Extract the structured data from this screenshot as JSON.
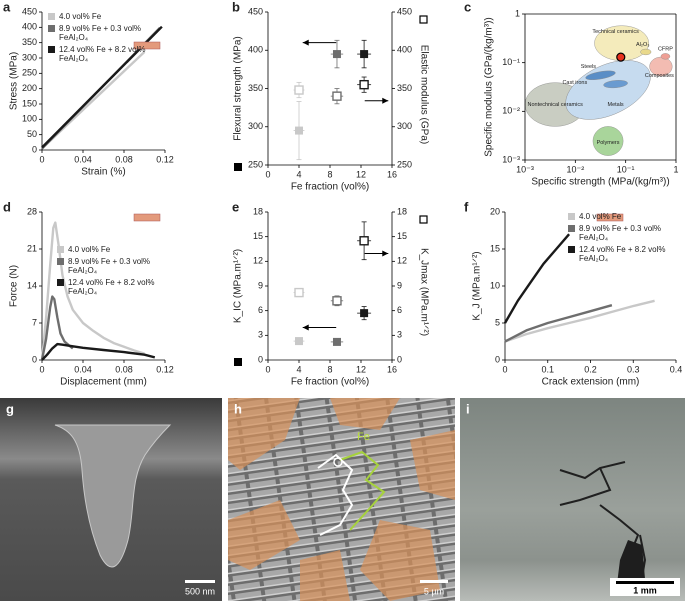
{
  "chart_data": [
    {
      "panel": "a",
      "type": "line",
      "xlabel": "Strain (%)",
      "ylabel": "Stress (MPa)",
      "xlim": [
        0,
        0.12
      ],
      "xticks": [
        0,
        0.04,
        0.08,
        0.12
      ],
      "ylim": [
        0,
        450
      ],
      "yticks": [
        0,
        50,
        100,
        150,
        200,
        250,
        300,
        350,
        400,
        450
      ],
      "legend": "upper left",
      "series": [
        {
          "name": "4.0 vol% Fe",
          "color": "#c8c8c8",
          "x": [
            0,
            0.1
          ],
          "values": [
            5,
            320
          ]
        },
        {
          "name": "8.9 vol% Fe + 0.3 vol% FeAl₂O₄",
          "color": "#6e6e6e",
          "x": [
            0,
            0.115
          ],
          "values": [
            5,
            398
          ]
        },
        {
          "name": "12.4 vol% Fe + 8.2 vol% FeAl₂O₄",
          "color": "#1a1a1a",
          "x": [
            0,
            0.117
          ],
          "values": [
            8,
            402
          ]
        }
      ]
    },
    {
      "panel": "b",
      "type": "scatter",
      "xlabel": "Fe fraction (vol%)",
      "ylabel": "Flexural strength (MPa)",
      "y2label": "Elastic modulus (GPa)",
      "x": [
        4,
        8.9,
        12.4
      ],
      "xerrors": [
        0.7,
        0.8,
        0.9
      ],
      "xlim": [
        0,
        16
      ],
      "xticks": [
        0,
        4,
        8,
        12,
        16
      ],
      "ylim": [
        250,
        450
      ],
      "yticks": [
        250,
        300,
        350,
        400,
        450
      ],
      "y2lim": [
        250,
        450
      ],
      "y2ticks": [
        250,
        300,
        350,
        400,
        450
      ],
      "series": [
        {
          "marker": "filled",
          "colors": [
            "#c8c8c8",
            "#6e6e6e",
            "#1a1a1a"
          ],
          "values": [
            295,
            395,
            395
          ],
          "errors": [
            38,
            18,
            18
          ]
        },
        {
          "axis": "y2",
          "marker": "open",
          "colors": [
            "#c8c8c8",
            "#6e6e6e",
            "#1a1a1a"
          ],
          "values": [
            348,
            340,
            355
          ],
          "errors": [
            10,
            10,
            10
          ]
        }
      ]
    },
    {
      "panel": "c",
      "type": "ashby",
      "xlabel": "Specific strength (MPa/(kg/m³))",
      "ylabel": "Specific modulus (GPa/(kg/m³))",
      "xlog": true,
      "ylog": true,
      "xlim": [
        0.001,
        1
      ],
      "ylim": [
        0.001,
        1
      ],
      "xticks": [
        {
          "value": 0.001,
          "label": "10⁻³"
        },
        {
          "value": 0.01,
          "label": "10⁻²"
        },
        {
          "value": 0.1,
          "label": "10⁻¹"
        },
        1
      ],
      "yticks": [
        {
          "value": 0.001,
          "label": "10⁻³"
        },
        {
          "value": 0.01,
          "label": "10⁻²"
        },
        {
          "value": 0.1,
          "label": "10⁻¹"
        },
        1
      ],
      "regions": [
        {
          "label": "Nontechnical ceramics",
          "color": "#c9cdc2"
        },
        {
          "label": "Metals",
          "color": "#c6dbef"
        },
        {
          "label": "Steels",
          "color": "#5a8ec6"
        },
        {
          "label": "Cast irons",
          "color": "#6a9bd0"
        },
        {
          "label": "Polymers",
          "color": "#a9d59b"
        },
        {
          "label": "Technical ceramics",
          "color": "#f4ebbb"
        },
        {
          "label": "Al₂O₃",
          "color": "#e9d98c"
        },
        {
          "label": "Composites",
          "color": "#f3bcb2"
        },
        {
          "label": "CFRP",
          "color": "#ee9f95"
        }
      ],
      "points": [
        {
          "x": 0.08,
          "y": 0.13,
          "color": "#e8321e"
        }
      ]
    },
    {
      "panel": "d",
      "type": "line",
      "xlabel": "Displacement (mm)",
      "ylabel": "Force (N)",
      "xlim": [
        0,
        0.12
      ],
      "xticks": [
        0,
        0.04,
        0.08,
        0.12
      ],
      "ylim": [
        0,
        28
      ],
      "yticks": [
        0,
        7,
        14,
        21,
        28
      ],
      "legend": "center right",
      "series": [
        {
          "name": "4.0 vol% Fe",
          "color": "#c8c8c8",
          "x": [
            0,
            0.004,
            0.008,
            0.011,
            0.013,
            0.016,
            0.02,
            0.025,
            0.03,
            0.04,
            0.05,
            0.06,
            0.07,
            0.08,
            0.09,
            0.1
          ],
          "values": [
            0,
            8,
            18,
            25,
            26,
            22,
            16,
            12,
            9.5,
            7,
            5.5,
            4.2,
            3.2,
            2.5,
            1.8,
            1.2
          ]
        },
        {
          "name": "8.9 vol% Fe + 0.3 vol% FeAl₂O₄",
          "color": "#6e6e6e",
          "x": [
            0,
            0.004,
            0.008,
            0.01,
            0.012,
            0.015,
            0.018,
            0.022,
            0.026,
            0.03
          ],
          "values": [
            0,
            4,
            10,
            12,
            11.5,
            8,
            5,
            3.5,
            2.8,
            2.2
          ]
        },
        {
          "name": "12.4 vol% Fe + 8.2 vol% FeAl₂O₄",
          "color": "#1a1a1a",
          "x": [
            0,
            0.005,
            0.01,
            0.015,
            0.02,
            0.03,
            0.04,
            0.06,
            0.08,
            0.1,
            0.11
          ],
          "values": [
            0,
            1,
            2.2,
            3,
            2.9,
            2.6,
            2.3,
            1.9,
            1.5,
            1,
            0.5
          ]
        }
      ]
    },
    {
      "panel": "e",
      "type": "scatter",
      "xlabel": "Fe fraction (vol%)",
      "ylabel": "K_IC (MPa.m¹ᐟ²)",
      "y2label": "K_Jmax (MPa.m¹ᐟ²)",
      "x": [
        4,
        8.9,
        12.4
      ],
      "xerrors": [
        0.7,
        0.8,
        0.9
      ],
      "xlim": [
        0,
        16
      ],
      "xticks": [
        0,
        4,
        8,
        12,
        16
      ],
      "ylim": [
        0,
        18
      ],
      "yticks": [
        0,
        3,
        6,
        9,
        12,
        15,
        18
      ],
      "y2lim": [
        0,
        18
      ],
      "y2ticks": [
        0,
        3,
        6,
        9,
        12,
        15,
        18
      ],
      "series": [
        {
          "marker": "filled",
          "colors": [
            "#c8c8c8",
            "#6e6e6e",
            "#1a1a1a"
          ],
          "values": [
            2.3,
            2.2,
            5.7
          ],
          "errors": [
            0.3,
            0.3,
            0.8
          ]
        },
        {
          "axis": "y2",
          "marker": "open",
          "colors": [
            "#c8c8c8",
            "#6e6e6e",
            "#1a1a1a"
          ],
          "values": [
            8.2,
            7.2,
            14.5
          ],
          "errors": [
            0.5,
            0.6,
            2.3
          ]
        }
      ]
    },
    {
      "panel": "f",
      "type": "line",
      "xlabel": "Crack extension (mm)",
      "ylabel": "K_J (MPa.m¹ᐟ²)",
      "xlim": [
        0,
        0.4
      ],
      "xticks": [
        0,
        0.1,
        0.2,
        0.3,
        0.4
      ],
      "ylim": [
        0,
        20
      ],
      "yticks": [
        0,
        5,
        10,
        15,
        20
      ],
      "legend": "upper right",
      "series": [
        {
          "name": "4.0 vol% Fe",
          "color": "#c8c8c8",
          "x": [
            0,
            0.05,
            0.1,
            0.15,
            0.2,
            0.25,
            0.3,
            0.35
          ],
          "values": [
            2.5,
            3.5,
            4.3,
            5,
            5.7,
            6.5,
            7.3,
            8
          ]
        },
        {
          "name": "8.9 vol% Fe + 0.3 vol% FeAl₂O₄",
          "color": "#6e6e6e",
          "x": [
            0,
            0.05,
            0.1,
            0.15,
            0.2,
            0.25
          ],
          "values": [
            2.5,
            4,
            5,
            5.8,
            6.6,
            7.4
          ]
        },
        {
          "name": "12.4 vol% Fe + 8.2 vol% FeAl₂O₄",
          "color": "#1a1a1a",
          "x": [
            0,
            0.03,
            0.06,
            0.09,
            0.12,
            0.15
          ],
          "values": [
            5,
            8,
            10.5,
            13,
            15,
            17
          ]
        }
      ]
    }
  ],
  "images": [
    {
      "panel": "g",
      "scale_bar": "500 nm"
    },
    {
      "panel": "h",
      "scale_bar": "5 µm",
      "annotation": "Fe"
    },
    {
      "panel": "i",
      "scale_bar": "1 mm"
    }
  ]
}
